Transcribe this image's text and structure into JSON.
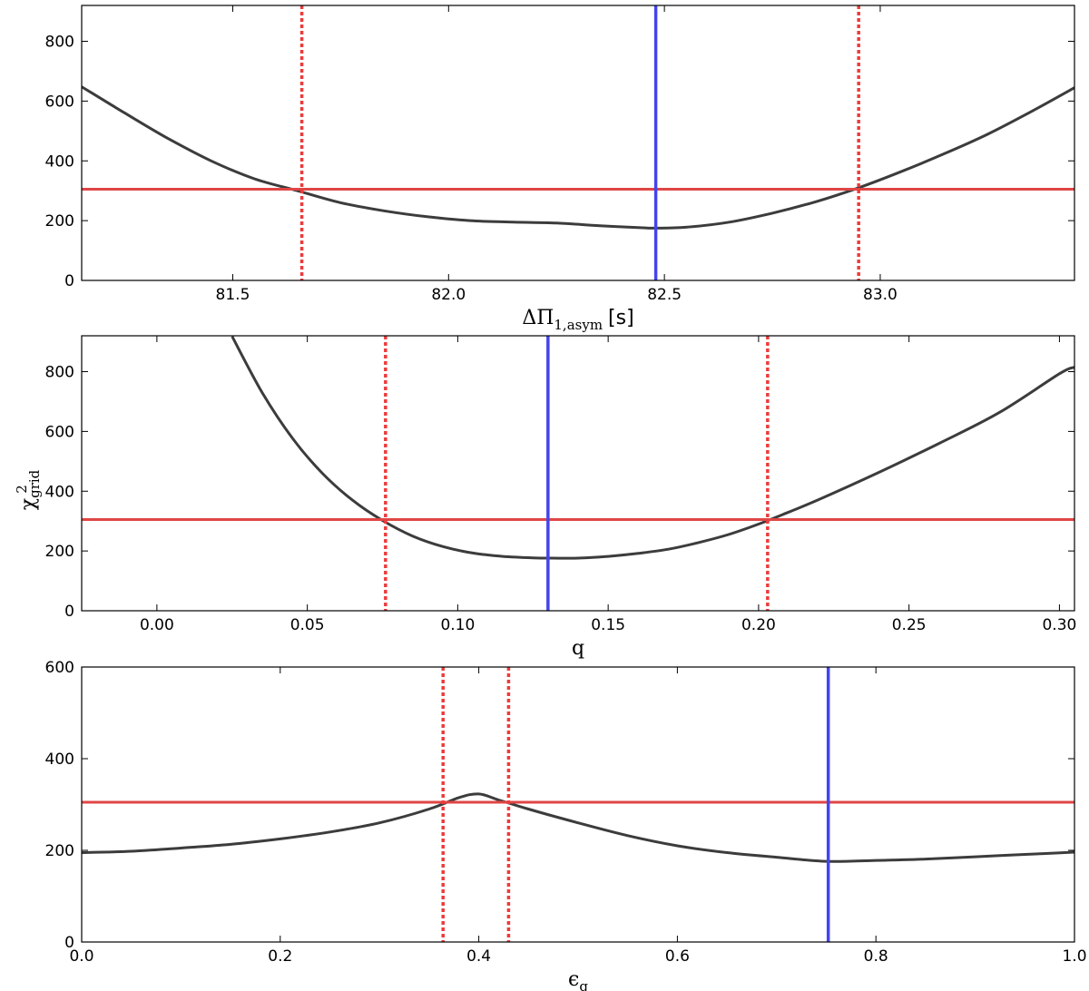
{
  "colors": {
    "curve": "#3c3c3c",
    "best_fit": "#4444ee",
    "threshold": "#e04545",
    "interval": "#ee3b3b",
    "frame": "#000000"
  },
  "shared_ylabel": {
    "symbol": "χ",
    "sup": "2",
    "sub": "grid"
  },
  "chart_data": [
    {
      "type": "line",
      "xlabel": {
        "symbol": "ΔΠ",
        "sub": "1,asym",
        "unit": "[s]"
      },
      "ylabel": "",
      "xlim": [
        81.15,
        83.45
      ],
      "ylim": [
        0,
        920
      ],
      "xticks": [
        81.5,
        82.0,
        82.5,
        83.0
      ],
      "xtick_labels": [
        "81.5",
        "82.0",
        "82.5",
        "83.0"
      ],
      "yticks": [
        0,
        200,
        400,
        600,
        800
      ],
      "ytick_labels": [
        "0",
        "200",
        "400",
        "600",
        "800"
      ],
      "series": [
        {
          "x": [
            81.15,
            81.25,
            81.35,
            81.45,
            81.55,
            81.65,
            81.75,
            81.85,
            81.95,
            82.05,
            82.15,
            82.25,
            82.35,
            82.45,
            82.48,
            82.55,
            82.65,
            82.75,
            82.85,
            82.95,
            83.05,
            83.15,
            83.25,
            83.35,
            83.45
          ],
          "y": [
            648,
            560,
            475,
            400,
            340,
            300,
            260,
            233,
            213,
            200,
            195,
            192,
            183,
            176,
            175,
            178,
            195,
            225,
            263,
            310,
            365,
            425,
            490,
            565,
            645
          ]
        }
      ],
      "threshold_y": 305,
      "best_fit_x": 82.48,
      "interval_x": [
        81.66,
        82.95
      ]
    },
    {
      "type": "line",
      "xlabel": {
        "symbol": "q",
        "sub": "",
        "unit": ""
      },
      "ylabel": "",
      "xlim": [
        -0.025,
        0.305
      ],
      "ylim": [
        0,
        920
      ],
      "xticks": [
        0.0,
        0.05,
        0.1,
        0.15,
        0.2,
        0.25,
        0.3
      ],
      "xtick_labels": [
        "0.00",
        "0.05",
        "0.10",
        "0.15",
        "0.20",
        "0.25",
        "0.30"
      ],
      "yticks": [
        0,
        200,
        400,
        600,
        800
      ],
      "ytick_labels": [
        "0",
        "200",
        "400",
        "600",
        "800"
      ],
      "series": [
        {
          "x": [
            0.025,
            0.035,
            0.045,
            0.055,
            0.065,
            0.075,
            0.085,
            0.095,
            0.105,
            0.115,
            0.125,
            0.13,
            0.14,
            0.15,
            0.16,
            0.17,
            0.18,
            0.19,
            0.2,
            0.21,
            0.22,
            0.24,
            0.26,
            0.28,
            0.3,
            0.305
          ],
          "y": [
            918,
            730,
            578,
            460,
            370,
            302,
            250,
            215,
            193,
            182,
            177,
            176,
            176,
            182,
            192,
            206,
            228,
            255,
            290,
            330,
            372,
            463,
            560,
            663,
            793,
            815
          ]
        }
      ],
      "threshold_y": 305,
      "best_fit_x": 0.13,
      "interval_x": [
        0.076,
        0.203
      ]
    },
    {
      "type": "line",
      "xlabel": {
        "symbol": "ϵ",
        "sub": "g",
        "unit": ""
      },
      "ylabel": "",
      "xlim": [
        0.0,
        1.0
      ],
      "ylim": [
        0,
        600
      ],
      "xticks": [
        0.0,
        0.2,
        0.4,
        0.6,
        0.8,
        1.0
      ],
      "xtick_labels": [
        "0.0",
        "0.2",
        "0.4",
        "0.6",
        "0.8",
        "1.0"
      ],
      "yticks": [
        0,
        200,
        400,
        600
      ],
      "ytick_labels": [
        "0",
        "200",
        "400",
        "600"
      ],
      "series": [
        {
          "x": [
            0.0,
            0.05,
            0.1,
            0.15,
            0.2,
            0.25,
            0.3,
            0.35,
            0.38,
            0.4,
            0.42,
            0.45,
            0.5,
            0.55,
            0.6,
            0.65,
            0.7,
            0.75,
            0.8,
            0.85,
            0.9,
            0.95,
            1.0
          ],
          "y": [
            195,
            198,
            205,
            213,
            225,
            240,
            260,
            290,
            315,
            323,
            310,
            290,
            260,
            232,
            210,
            195,
            185,
            176,
            178,
            181,
            186,
            191,
            196
          ]
        }
      ],
      "threshold_y": 305,
      "best_fit_x": 0.752,
      "interval_x": [
        0.364,
        0.43
      ]
    }
  ]
}
